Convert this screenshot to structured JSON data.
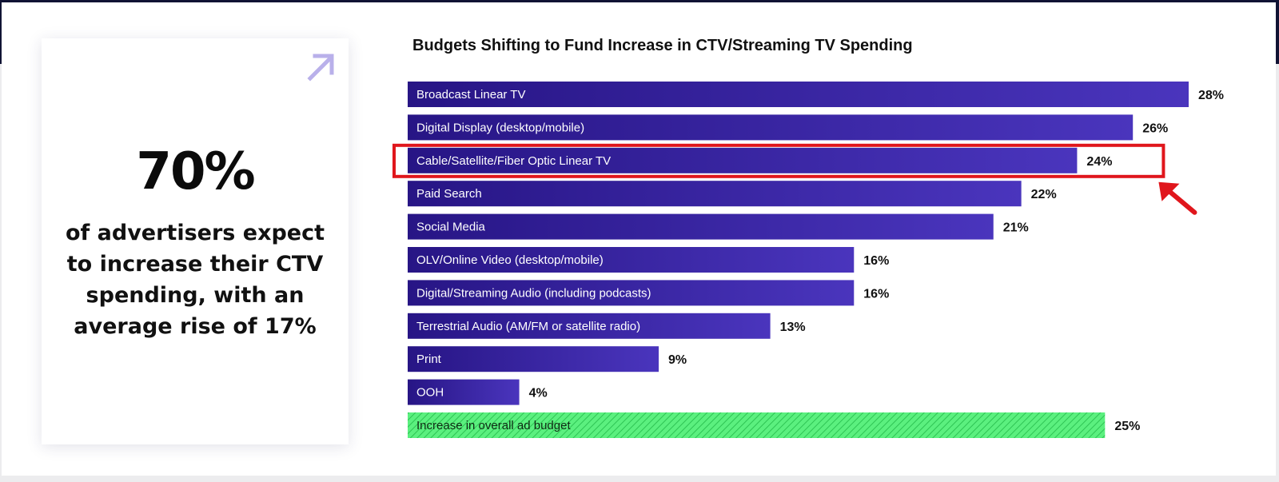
{
  "stat": {
    "value": "70%",
    "description": "of advertisers expect to increase their CTV spending, with an average rise of 17%"
  },
  "chart_data": {
    "type": "bar",
    "orientation": "horizontal",
    "title": "Budgets Shifting to Fund Increase in CTV/Streaming TV Spending",
    "categories": [
      "Broadcast Linear TV",
      "Digital Display (desktop/mobile)",
      "Cable/Satellite/Fiber Optic Linear TV",
      "Paid Search",
      "Social Media",
      "OLV/Online Video (desktop/mobile)",
      "Digital/Streaming Audio (including podcasts)",
      "Terrestrial Audio (AM/FM or satellite radio)",
      "Print",
      "OOH",
      "Increase in overall ad budget"
    ],
    "values": [
      28,
      26,
      24,
      22,
      21,
      16,
      16,
      13,
      9,
      4,
      25
    ],
    "value_labels": [
      "28%",
      "26%",
      "24%",
      "22%",
      "21%",
      "16%",
      "16%",
      "13%",
      "9%",
      "4%",
      "25%"
    ],
    "highlighted_category": "Cable/Satellite/Fiber Optic Linear TV",
    "special_category": "Increase in overall ad budget",
    "xlim": [
      0,
      28
    ],
    "grid": false,
    "legend": "none",
    "colors": {
      "bar_start": "#271585",
      "bar_end": "#4a35bd",
      "special_bar": "#5bf07f",
      "special_stripe": "#2ec454",
      "highlight": "#e0161c",
      "arrow_icon": "#b9b0ea"
    }
  }
}
